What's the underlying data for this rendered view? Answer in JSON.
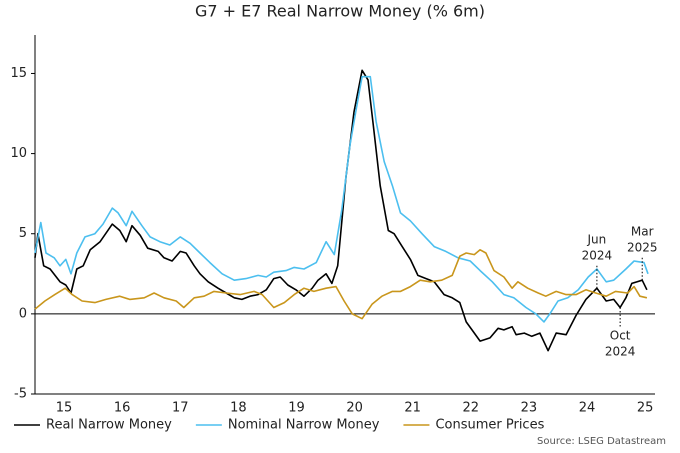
{
  "chart_data": {
    "type": "line",
    "title": "G7 + E7 Real Narrow Money (% 6m)",
    "source": "Source: LSEG Datastream",
    "xlim": [
      2015,
      2025.67
    ],
    "ylim": [
      -5,
      17.4
    ],
    "yticks": [
      -5,
      0,
      5,
      10,
      15
    ],
    "xticks": [
      {
        "value": 2015.5,
        "label": "15"
      },
      {
        "value": 2016.5,
        "label": "16"
      },
      {
        "value": 2017.5,
        "label": "17"
      },
      {
        "value": 2018.5,
        "label": "18"
      },
      {
        "value": 2019.5,
        "label": "19"
      },
      {
        "value": 2020.5,
        "label": "20"
      },
      {
        "value": 2021.5,
        "label": "21"
      },
      {
        "value": 2022.5,
        "label": "22"
      },
      {
        "value": 2023.5,
        "label": "23"
      },
      {
        "value": 2024.5,
        "label": "24"
      },
      {
        "value": 2025.5,
        "label": "25"
      }
    ],
    "grid": false,
    "series": [
      {
        "name": "Real Narrow Money",
        "color": "#000000",
        "x": [
          2015.0,
          2015.05,
          2015.15,
          2015.26,
          2015.43,
          2015.53,
          2015.62,
          2015.72,
          2015.83,
          2015.95,
          2016.12,
          2016.33,
          2016.46,
          2016.57,
          2016.67,
          2016.81,
          2016.94,
          2017.12,
          2017.22,
          2017.36,
          2017.5,
          2017.6,
          2017.74,
          2017.84,
          2017.98,
          2018.15,
          2018.29,
          2018.43,
          2018.56,
          2018.7,
          2018.84,
          2018.98,
          2019.11,
          2019.22,
          2019.35,
          2019.49,
          2019.63,
          2019.77,
          2019.87,
          2020.01,
          2020.11,
          2020.21,
          2020.35,
          2020.49,
          2020.63,
          2020.73,
          2020.83,
          2020.94,
          2021.08,
          2021.18,
          2021.32,
          2021.46,
          2021.59,
          2021.73,
          2021.87,
          2022.04,
          2022.18,
          2022.31,
          2022.42,
          2022.52,
          2022.66,
          2022.83,
          2022.97,
          2023.07,
          2023.21,
          2023.28,
          2023.42,
          2023.55,
          2023.69,
          2023.83,
          2023.97,
          2024.14,
          2024.31,
          2024.48,
          2024.67,
          2024.83,
          2024.96,
          2025.07,
          2025.17,
          2025.27,
          2025.45,
          2025.53
        ],
        "values": [
          3.5,
          5.0,
          3.0,
          2.8,
          2.0,
          1.8,
          1.3,
          2.8,
          3.0,
          4.0,
          4.5,
          5.6,
          5.2,
          4.5,
          5.5,
          4.9,
          4.1,
          3.9,
          3.5,
          3.3,
          3.9,
          3.8,
          3.0,
          2.5,
          2.0,
          1.6,
          1.3,
          1.0,
          0.9,
          1.1,
          1.2,
          1.5,
          2.2,
          2.3,
          1.8,
          1.5,
          1.1,
          1.6,
          2.1,
          2.5,
          1.9,
          3.0,
          8.5,
          12.6,
          15.2,
          14.6,
          11.5,
          8.0,
          5.2,
          5.0,
          4.2,
          3.4,
          2.4,
          2.2,
          2.0,
          1.2,
          1.0,
          0.7,
          -0.5,
          -1.0,
          -1.7,
          -1.5,
          -0.9,
          -1.0,
          -0.8,
          -1.3,
          -1.2,
          -1.4,
          -1.2,
          -2.3,
          -1.2,
          -1.3,
          -0.1,
          0.9,
          1.6,
          0.8,
          0.9,
          0.4,
          1.0,
          1.9,
          2.1,
          1.5
        ]
      },
      {
        "name": "Nominal Narrow Money",
        "color": "#4cbfef",
        "x": [
          2015.0,
          2015.1,
          2015.19,
          2015.33,
          2015.43,
          2015.53,
          2015.62,
          2015.72,
          2015.86,
          2016.03,
          2016.17,
          2016.33,
          2016.43,
          2016.57,
          2016.67,
          2016.84,
          2016.98,
          2017.15,
          2017.32,
          2017.5,
          2017.67,
          2017.84,
          2018.01,
          2018.22,
          2018.43,
          2018.63,
          2018.84,
          2018.98,
          2019.11,
          2019.32,
          2019.46,
          2019.63,
          2019.84,
          2020.01,
          2020.15,
          2020.28,
          2020.42,
          2020.53,
          2020.63,
          2020.77,
          2020.87,
          2021.01,
          2021.15,
          2021.29,
          2021.46,
          2021.66,
          2021.87,
          2022.07,
          2022.28,
          2022.49,
          2022.66,
          2022.87,
          2023.07,
          2023.24,
          2023.45,
          2023.62,
          2023.76,
          2023.86,
          2024.0,
          2024.17,
          2024.35,
          2024.52,
          2024.67,
          2024.83,
          2024.96,
          2025.17,
          2025.31,
          2025.48,
          2025.55
        ],
        "values": [
          3.8,
          5.7,
          3.8,
          3.5,
          3.0,
          3.4,
          2.5,
          3.8,
          4.8,
          5.0,
          5.6,
          6.6,
          6.3,
          5.5,
          6.4,
          5.5,
          4.8,
          4.5,
          4.3,
          4.8,
          4.4,
          3.8,
          3.2,
          2.5,
          2.1,
          2.2,
          2.4,
          2.3,
          2.6,
          2.7,
          2.9,
          2.8,
          3.2,
          4.5,
          3.7,
          6.5,
          10.5,
          12.8,
          14.8,
          14.8,
          12.0,
          9.5,
          8.0,
          6.3,
          5.8,
          5.0,
          4.2,
          3.9,
          3.5,
          3.3,
          2.7,
          2.0,
          1.2,
          1.0,
          0.4,
          0.0,
          -0.5,
          0.0,
          0.8,
          1.0,
          1.5,
          2.3,
          2.8,
          2.0,
          2.1,
          2.8,
          3.3,
          3.2,
          2.5
        ]
      },
      {
        "name": "Consumer Prices",
        "color": "#c9961c",
        "x": [
          2015.0,
          2015.17,
          2015.34,
          2015.52,
          2015.64,
          2015.81,
          2016.03,
          2016.22,
          2016.46,
          2016.63,
          2016.88,
          2017.05,
          2017.22,
          2017.43,
          2017.56,
          2017.74,
          2017.91,
          2018.08,
          2018.29,
          2018.53,
          2018.77,
          2018.91,
          2019.11,
          2019.29,
          2019.46,
          2019.63,
          2019.8,
          2020.01,
          2020.18,
          2020.32,
          2020.46,
          2020.63,
          2020.8,
          2020.97,
          2021.15,
          2021.29,
          2021.46,
          2021.63,
          2021.8,
          2022.0,
          2022.18,
          2022.31,
          2022.42,
          2022.56,
          2022.66,
          2022.76,
          2022.9,
          2023.07,
          2023.21,
          2023.31,
          2023.48,
          2023.66,
          2023.79,
          2023.97,
          2024.14,
          2024.31,
          2024.48,
          2024.65,
          2024.83,
          2024.99,
          2025.2,
          2025.31,
          2025.41,
          2025.53
        ],
        "values": [
          0.3,
          0.8,
          1.2,
          1.6,
          1.2,
          0.8,
          0.7,
          0.9,
          1.1,
          0.9,
          1.0,
          1.3,
          1.0,
          0.8,
          0.4,
          1.0,
          1.1,
          1.4,
          1.3,
          1.2,
          1.4,
          1.2,
          0.4,
          0.7,
          1.2,
          1.6,
          1.4,
          1.6,
          1.7,
          0.8,
          0.0,
          -0.3,
          0.6,
          1.1,
          1.4,
          1.4,
          1.7,
          2.1,
          2.0,
          2.1,
          2.4,
          3.6,
          3.8,
          3.7,
          4.0,
          3.8,
          2.7,
          2.3,
          1.6,
          2.0,
          1.6,
          1.3,
          1.1,
          1.4,
          1.2,
          1.2,
          1.5,
          1.3,
          1.1,
          1.4,
          1.3,
          1.7,
          1.1,
          1.0
        ]
      }
    ],
    "annotations": [
      {
        "lines": [
          "Jun",
          "2024"
        ],
        "x": 2024.67,
        "y": 1.6
      },
      {
        "lines": [
          "Oct",
          "2024"
        ],
        "x": 2025.07,
        "y": 0.4
      },
      {
        "lines": [
          "Mar",
          "2025"
        ],
        "x": 2025.45,
        "y": 2.1
      }
    ]
  }
}
